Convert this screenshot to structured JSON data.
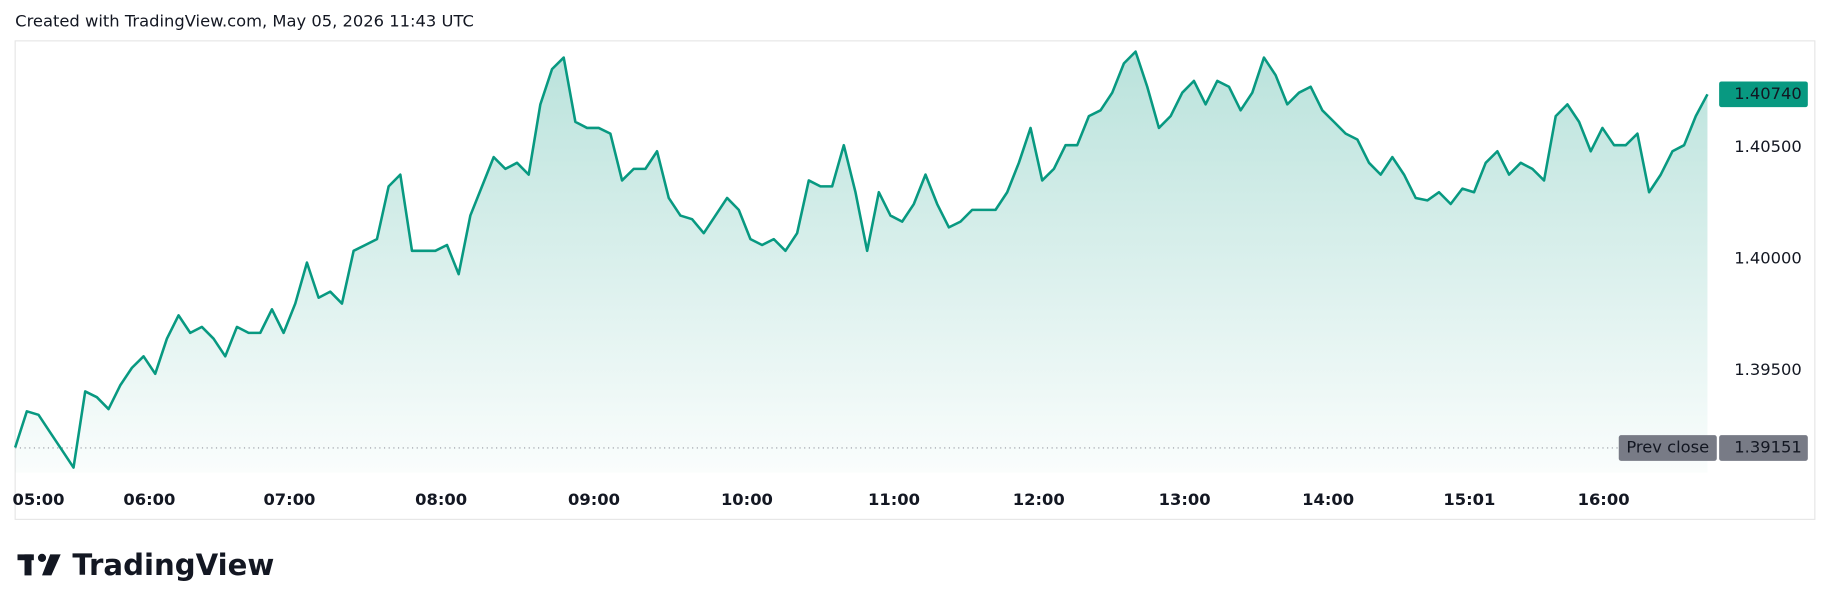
{
  "chart_data": {
    "type": "line",
    "title": "Created with TradingView.com, May 05, 2026 11:43 UTC",
    "color": "#089981",
    "values": [
      1.39153,
      1.39316,
      1.393,
      1.39221,
      1.39142,
      1.39063,
      1.39405,
      1.39379,
      1.39326,
      1.39432,
      1.39511,
      1.39563,
      1.39484,
      1.39642,
      1.39747,
      1.39668,
      1.39695,
      1.39642,
      1.39563,
      1.39695,
      1.39668,
      1.39668,
      1.39774,
      1.39668,
      1.398,
      1.39984,
      1.39826,
      1.39853,
      1.398,
      1.40037,
      1.40063,
      1.40089,
      1.40326,
      1.40379,
      1.40037,
      1.40037,
      1.40037,
      1.40063,
      1.39932,
      1.40195,
      1.40326,
      1.40458,
      1.40405,
      1.40432,
      1.40379,
      1.40695,
      1.40853,
      1.40905,
      1.40616,
      1.40589,
      1.40589,
      1.40563,
      1.40353,
      1.40405,
      1.40405,
      1.40484,
      1.40274,
      1.40195,
      1.40179,
      1.40116,
      1.40195,
      1.40274,
      1.40221,
      1.40089,
      1.40063,
      1.40089,
      1.40037,
      1.40116,
      1.40353,
      1.40326,
      1.40326,
      1.40511,
      1.403,
      1.40037,
      1.403,
      1.40195,
      1.40168,
      1.40247,
      1.40379,
      1.40247,
      1.40142,
      1.40168,
      1.40221,
      1.40221,
      1.40221,
      1.403,
      1.40432,
      1.40589,
      1.40353,
      1.40405,
      1.40511,
      1.40511,
      1.40642,
      1.40668,
      1.40747,
      1.40879,
      1.40932,
      1.40774,
      1.40589,
      1.40642,
      1.40747,
      1.408,
      1.40695,
      1.408,
      1.40774,
      1.40668,
      1.40747,
      1.40905,
      1.40826,
      1.40695,
      1.40747,
      1.40774,
      1.40668,
      1.40616,
      1.40563,
      1.40537,
      1.40432,
      1.40379,
      1.40458,
      1.40379,
      1.40274,
      1.40263,
      1.403,
      1.40247,
      1.40316,
      1.403,
      1.40432,
      1.40484,
      1.40379,
      1.40432,
      1.40405,
      1.40353,
      1.40642,
      1.40695,
      1.40616,
      1.40484,
      1.40589,
      1.40511,
      1.40511,
      1.40563,
      1.403,
      1.40379,
      1.40484,
      1.40511,
      1.40642,
      1.4074
    ],
    "xlim": [
      0,
      154
    ],
    "xticks": [
      {
        "value": 2,
        "label": "05:00"
      },
      {
        "value": 11.5,
        "label": "06:00"
      },
      {
        "value": 23.5,
        "label": "07:00"
      },
      {
        "value": 36.5,
        "label": "08:00"
      },
      {
        "value": 49.6,
        "label": "09:00"
      },
      {
        "value": 62.7,
        "label": "10:00"
      },
      {
        "value": 75.3,
        "label": "11:00"
      },
      {
        "value": 87.7,
        "label": "12:00"
      },
      {
        "value": 100.2,
        "label": "13:00"
      },
      {
        "value": 112.5,
        "label": "14:00"
      },
      {
        "value": 124.6,
        "label": "15:01"
      },
      {
        "value": 136.1,
        "label": "16:00"
      }
    ],
    "ylim": [
      1.3904,
      1.4098
    ],
    "yticks": [
      {
        "value": 1.395,
        "label": "1.39500"
      },
      {
        "value": 1.4,
        "label": "1.40000"
      },
      {
        "value": 1.405,
        "label": "1.40500"
      }
    ],
    "last_price": {
      "value": 1.4074,
      "label": "1.40740"
    },
    "prev_close": {
      "name": "Prev close",
      "value": 1.39151,
      "label": "1.39151"
    }
  },
  "logo_text": "TradingView"
}
